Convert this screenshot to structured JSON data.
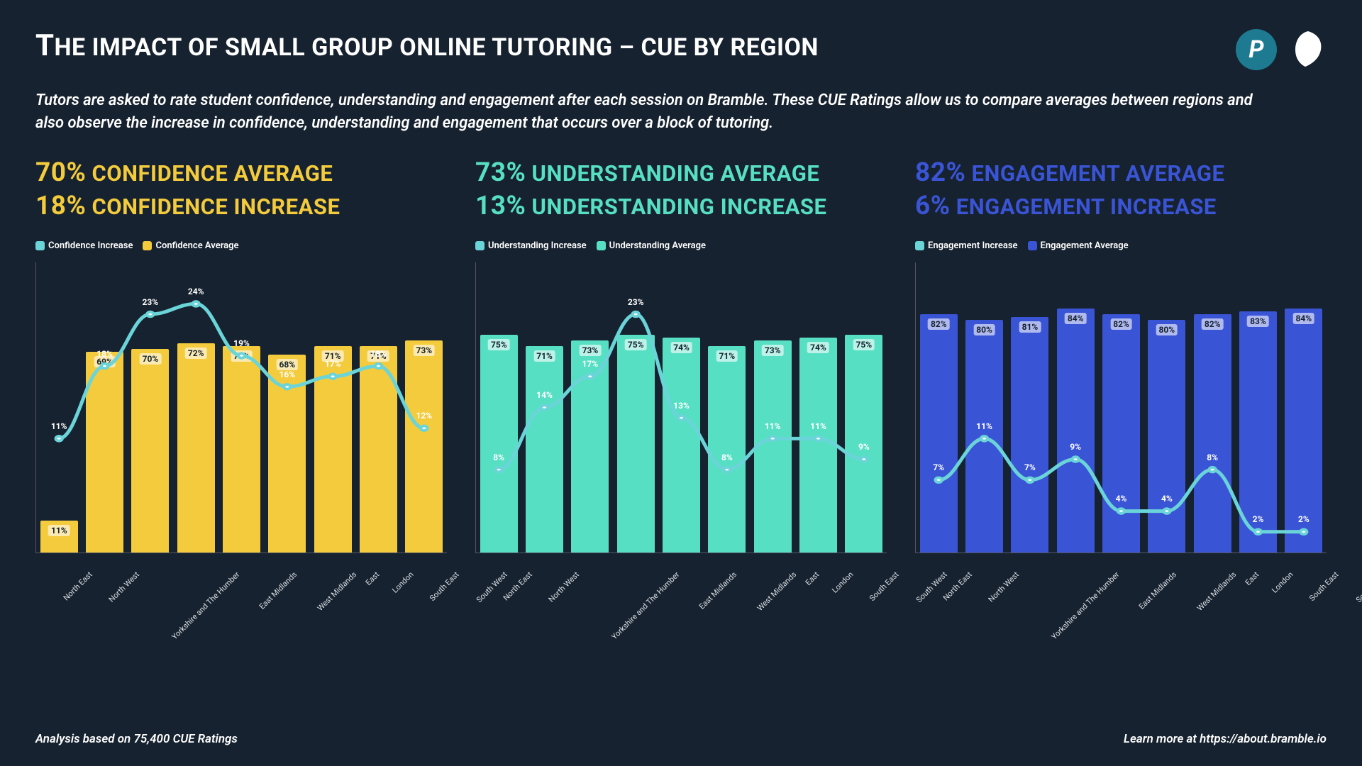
{
  "title": "The impact of small group online tutoring – CUE by region",
  "subtitle": "Tutors are asked to rate student confidence, understanding and engagement after each session on Bramble. These CUE Ratings allow us to compare averages between regions and also observe the increase in confidence, understanding and engagement that occurs over a block of tutoring.",
  "footer_left": "Analysis based on 75,400 CUE Ratings",
  "footer_right": "Learn more at https://about.bramble.io",
  "regions": [
    "North East",
    "North West",
    "Yorkshire and The Humber",
    "East Midlands",
    "West Midlands",
    "East",
    "London",
    "South East",
    "South West"
  ],
  "line_color": "#6bd4d9",
  "background_color": "#16222f",
  "panels": [
    {
      "key": "confidence",
      "color": "#f3cb3c",
      "stat1_num": "70%",
      "stat1_text": " Confidence average",
      "stat2_num": "18%",
      "stat2_text": " Confidence increase",
      "legend_increase": "Confidence Increase",
      "legend_average": "Confidence Average",
      "increase_color": "#6bd4d9",
      "bar_color": "#f3cb3c",
      "bar_values": [
        11,
        69,
        70,
        72,
        71,
        68,
        71,
        71,
        73
      ],
      "bar_labels": [
        "11%",
        "69%",
        "70%",
        "72%",
        "71%",
        "68%",
        "71%",
        "71%",
        "73%"
      ],
      "bar_first_is_short": true,
      "bar_ymax": 100,
      "line_values": [
        11,
        18,
        23,
        24,
        19,
        16,
        17,
        18,
        12
      ],
      "line_labels": [
        "11%",
        "18%",
        "23%",
        "24%",
        "19%",
        "16%",
        "17%",
        "18%",
        "12%"
      ],
      "line_ymax": 28
    },
    {
      "key": "understanding",
      "color": "#57dfc4",
      "stat1_num": "73%",
      "stat1_text": " Understanding average",
      "stat2_num": "13%",
      "stat2_text": " Understanding increase",
      "legend_increase": "Understanding Increase",
      "legend_average": "Understanding Average",
      "increase_color": "#6bd4d9",
      "bar_color": "#57dfc4",
      "bar_values": [
        75,
        71,
        73,
        75,
        74,
        71,
        73,
        74,
        75
      ],
      "bar_labels": [
        "75%",
        "71%",
        "73%",
        "75%",
        "74%",
        "71%",
        "73%",
        "74%",
        "75%"
      ],
      "bar_ymax": 100,
      "line_values": [
        8,
        14,
        17,
        23,
        13,
        8,
        11,
        11,
        9
      ],
      "line_labels": [
        "8%",
        "14%",
        "17%",
        "23%",
        "13%",
        "8%",
        "11%",
        "11%",
        "9%"
      ],
      "line_ymax": 28
    },
    {
      "key": "engagement",
      "color": "#3a54d6",
      "stat1_num": "82%",
      "stat1_text": " Engagement average",
      "stat2_num": "6%",
      "stat2_text": " Engagement increase",
      "legend_increase": "Engagement Increase",
      "legend_average": "Engagement Average",
      "increase_color": "#6bd4d9",
      "bar_color": "#3a54d6",
      "bar_values": [
        82,
        80,
        81,
        84,
        82,
        80,
        82,
        83,
        84
      ],
      "bar_labels": [
        "82%",
        "80%",
        "81%",
        "84%",
        "82%",
        "80%",
        "82%",
        "83%",
        "84%"
      ],
      "bar_ymax": 100,
      "line_values": [
        7,
        11,
        7,
        9,
        4,
        4,
        8,
        2,
        2
      ],
      "line_labels": [
        "7%",
        "11%",
        "7%",
        "9%",
        "4%",
        "4%",
        "8%",
        "2%",
        "2%"
      ],
      "line_ymax": 28
    }
  ]
}
